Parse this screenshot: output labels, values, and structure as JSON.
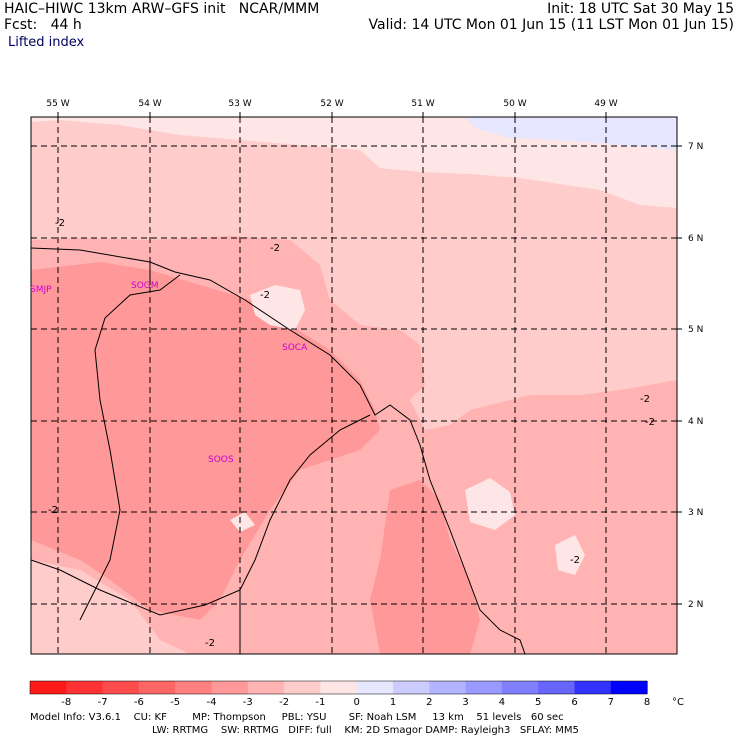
{
  "header": {
    "model_title": "HAIC–HIWC 13km ARW–GFS init   NCAR/MMM",
    "init": "Init: 18 UTC Sat 30 May 15",
    "fcst": "Fcst:   44 h",
    "valid": "Valid: 14 UTC Mon 01 Jun 15 (11 LST Mon 01 Jun 15)",
    "field": "Lifted index"
  },
  "map": {
    "longitudes": [
      "55 W",
      "54 W",
      "53 W",
      "52 W",
      "51 W",
      "50 W",
      "49 W"
    ],
    "latitudes": [
      "7 N",
      "6 N",
      "5 N",
      "4 N",
      "3 N",
      "2 N"
    ],
    "stations": [
      "SMJP",
      "SOGM",
      "SOCA",
      "SOOS"
    ],
    "contour_label": "-2"
  },
  "colorbar": {
    "labels": [
      "-8",
      "-7",
      "-6",
      "-5",
      "-4",
      "-3",
      "-2",
      "-1",
      "0",
      "1",
      "2",
      "3",
      "4",
      "5",
      "6",
      "7",
      "8"
    ],
    "unit": "°C",
    "colors": [
      "#ff1a1a",
      "#ff3333",
      "#ff4d4d",
      "#ff6666",
      "#ff8080",
      "#ff9999",
      "#ffb3b3",
      "#ffcccc",
      "#ffe6e6",
      "#e6e6ff",
      "#ccccff",
      "#b3b3ff",
      "#9999ff",
      "#8080ff",
      "#6666ff",
      "#3333ff",
      "#0000ff"
    ]
  },
  "footer": {
    "line1": "Model Info: V3.6.1    CU: KF        MP: Thompson     PBL: YSU       SF: Noah LSM     13 km    51 levels   60 sec",
    "line2": "LW: RRTMG    SW: RRTMG   DIFF: full    KM: 2D Smagor DAMP: Rayleigh3   SFLAY: MM5"
  }
}
